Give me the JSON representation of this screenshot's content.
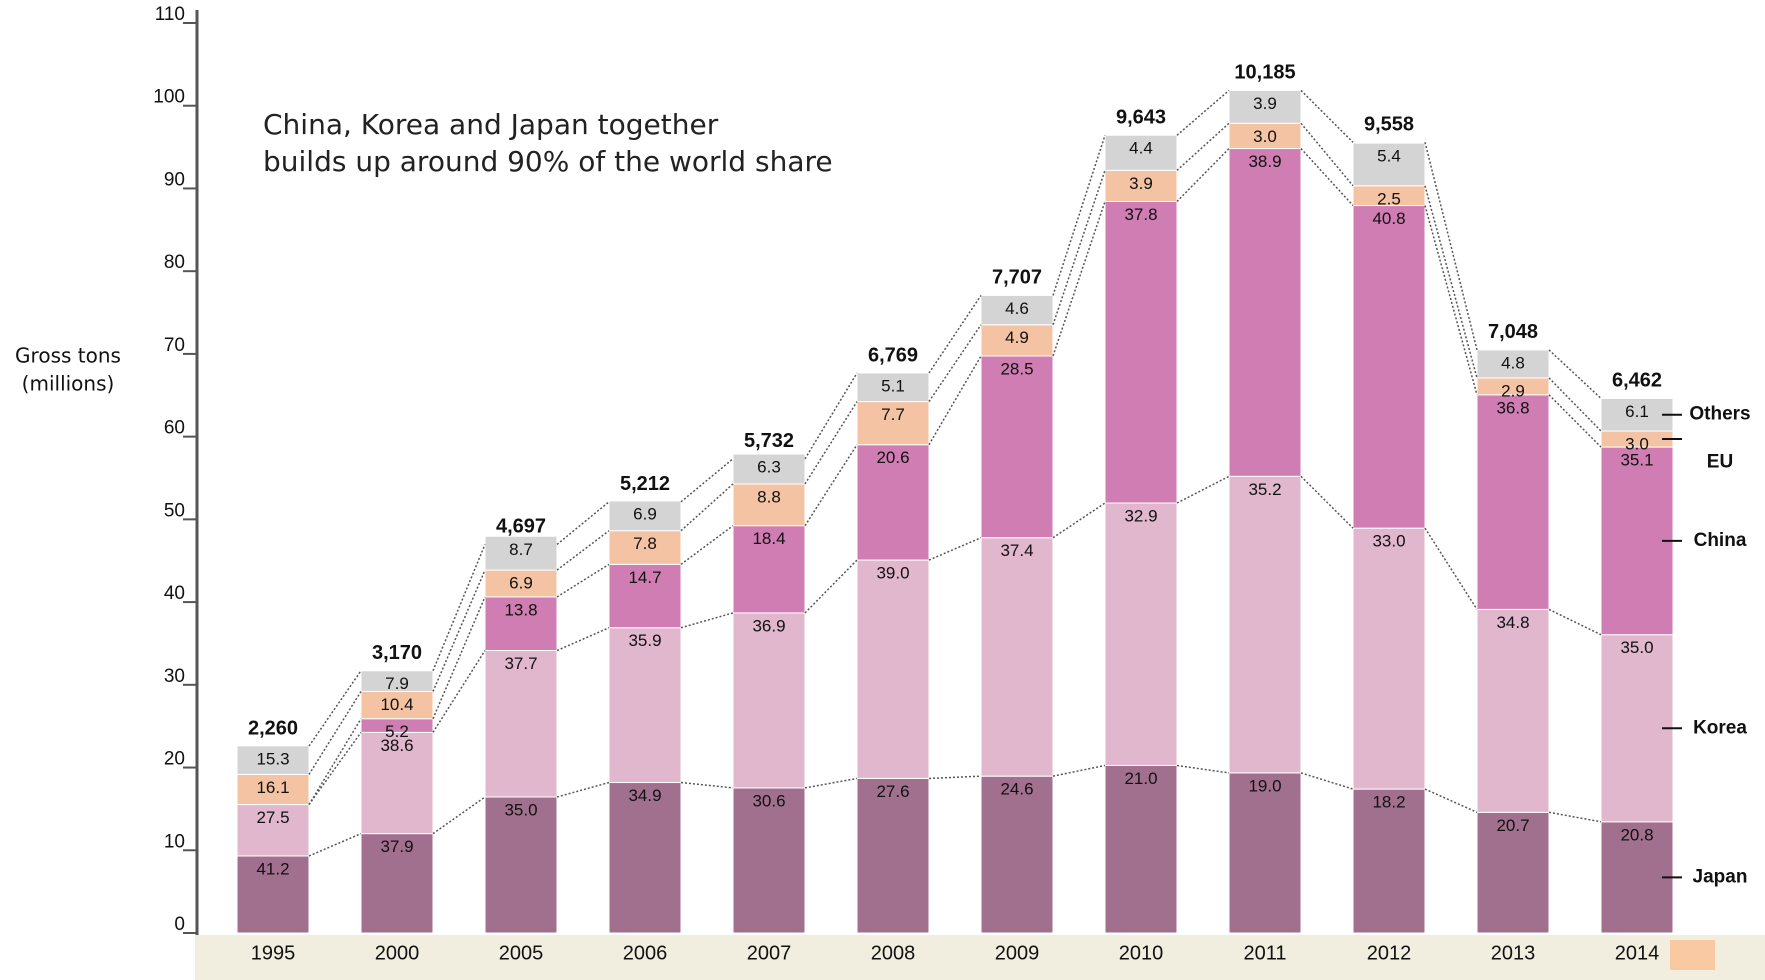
{
  "chart_data": {
    "type": "stacked-share-bar",
    "y_label": [
      "Gross tons",
      "(millions)"
    ],
    "annotation": [
      "China, Korea and Japan together",
      "builds up around 90% of the world share"
    ],
    "categories": [
      "1995",
      "2000",
      "2005",
      "2006",
      "2007",
      "2008",
      "2009",
      "2010",
      "2011",
      "2012",
      "2013",
      "2014"
    ],
    "totals": {
      "values": [
        22.6,
        31.7,
        46.97,
        52.12,
        57.32,
        67.69,
        77.07,
        96.43,
        101.85,
        95.58,
        70.48,
        64.62
      ],
      "value_labels": [
        "2,260",
        "3,170",
        "4,697",
        "5,212",
        "5,732",
        "6,769",
        "7,707",
        "9,643",
        "10,185",
        "9,558",
        "7,048",
        "6,462"
      ]
    },
    "series": [
      {
        "name": "Japan",
        "color": "#a2708f",
        "values": [
          41.2,
          37.9,
          35.0,
          34.9,
          30.6,
          27.6,
          24.6,
          21.0,
          19.0,
          18.2,
          20.7,
          20.8
        ],
        "value_labels": [
          "41.2",
          "37.9",
          "35.0",
          "34.9",
          "30.6",
          "27.6",
          "24.6",
          "21.0",
          "19.0",
          "18.2",
          "20.7",
          "20.8"
        ]
      },
      {
        "name": "Korea",
        "color": "#e1b7cd",
        "values": [
          27.5,
          38.6,
          37.7,
          35.9,
          36.9,
          39.0,
          37.4,
          32.9,
          35.2,
          33.0,
          34.8,
          35.0
        ],
        "value_labels": [
          "27.5",
          "38.6",
          "37.7",
          "35.9",
          "36.9",
          "39.0",
          "37.4",
          "32.9",
          "35.2",
          "33.0",
          "34.8",
          "35.0"
        ]
      },
      {
        "name": "China",
        "color": "#cf7db3",
        "values": [
          null,
          5.2,
          13.8,
          14.7,
          18.4,
          20.6,
          28.5,
          37.8,
          38.9,
          40.8,
          36.8,
          35.1
        ],
        "value_labels": [
          null,
          "5.2",
          "13.8",
          "14.7",
          "18.4",
          "20.6",
          "28.5",
          "37.8",
          "38.9",
          "40.8",
          "36.8",
          "35.1"
        ]
      },
      {
        "name": "EU",
        "color": "#f4c3a4",
        "values": [
          16.1,
          10.4,
          6.9,
          7.8,
          8.8,
          7.7,
          4.9,
          3.9,
          3.0,
          2.5,
          2.9,
          3.0
        ],
        "value_labels": [
          "16.1",
          "10.4",
          "6.9",
          "7.8",
          "8.8",
          "7.7",
          "4.9",
          "3.9",
          "3.0",
          "2.5",
          "2.9",
          "3.0"
        ]
      },
      {
        "name": "Others",
        "color": "#d4d4d4",
        "values": [
          15.3,
          7.9,
          8.7,
          6.9,
          6.3,
          5.1,
          4.6,
          4.4,
          3.9,
          5.4,
          4.8,
          6.1
        ],
        "value_labels": [
          "15.3",
          "7.9",
          "8.7",
          "6.9",
          "6.3",
          "5.1",
          "4.6",
          "4.4",
          "3.9",
          "5.4",
          "4.8",
          "6.1"
        ]
      }
    ],
    "ylim": [
      0,
      110
    ],
    "yticks": [
      0,
      10,
      20,
      30,
      40,
      50,
      60,
      70,
      80,
      90,
      100,
      110
    ]
  }
}
